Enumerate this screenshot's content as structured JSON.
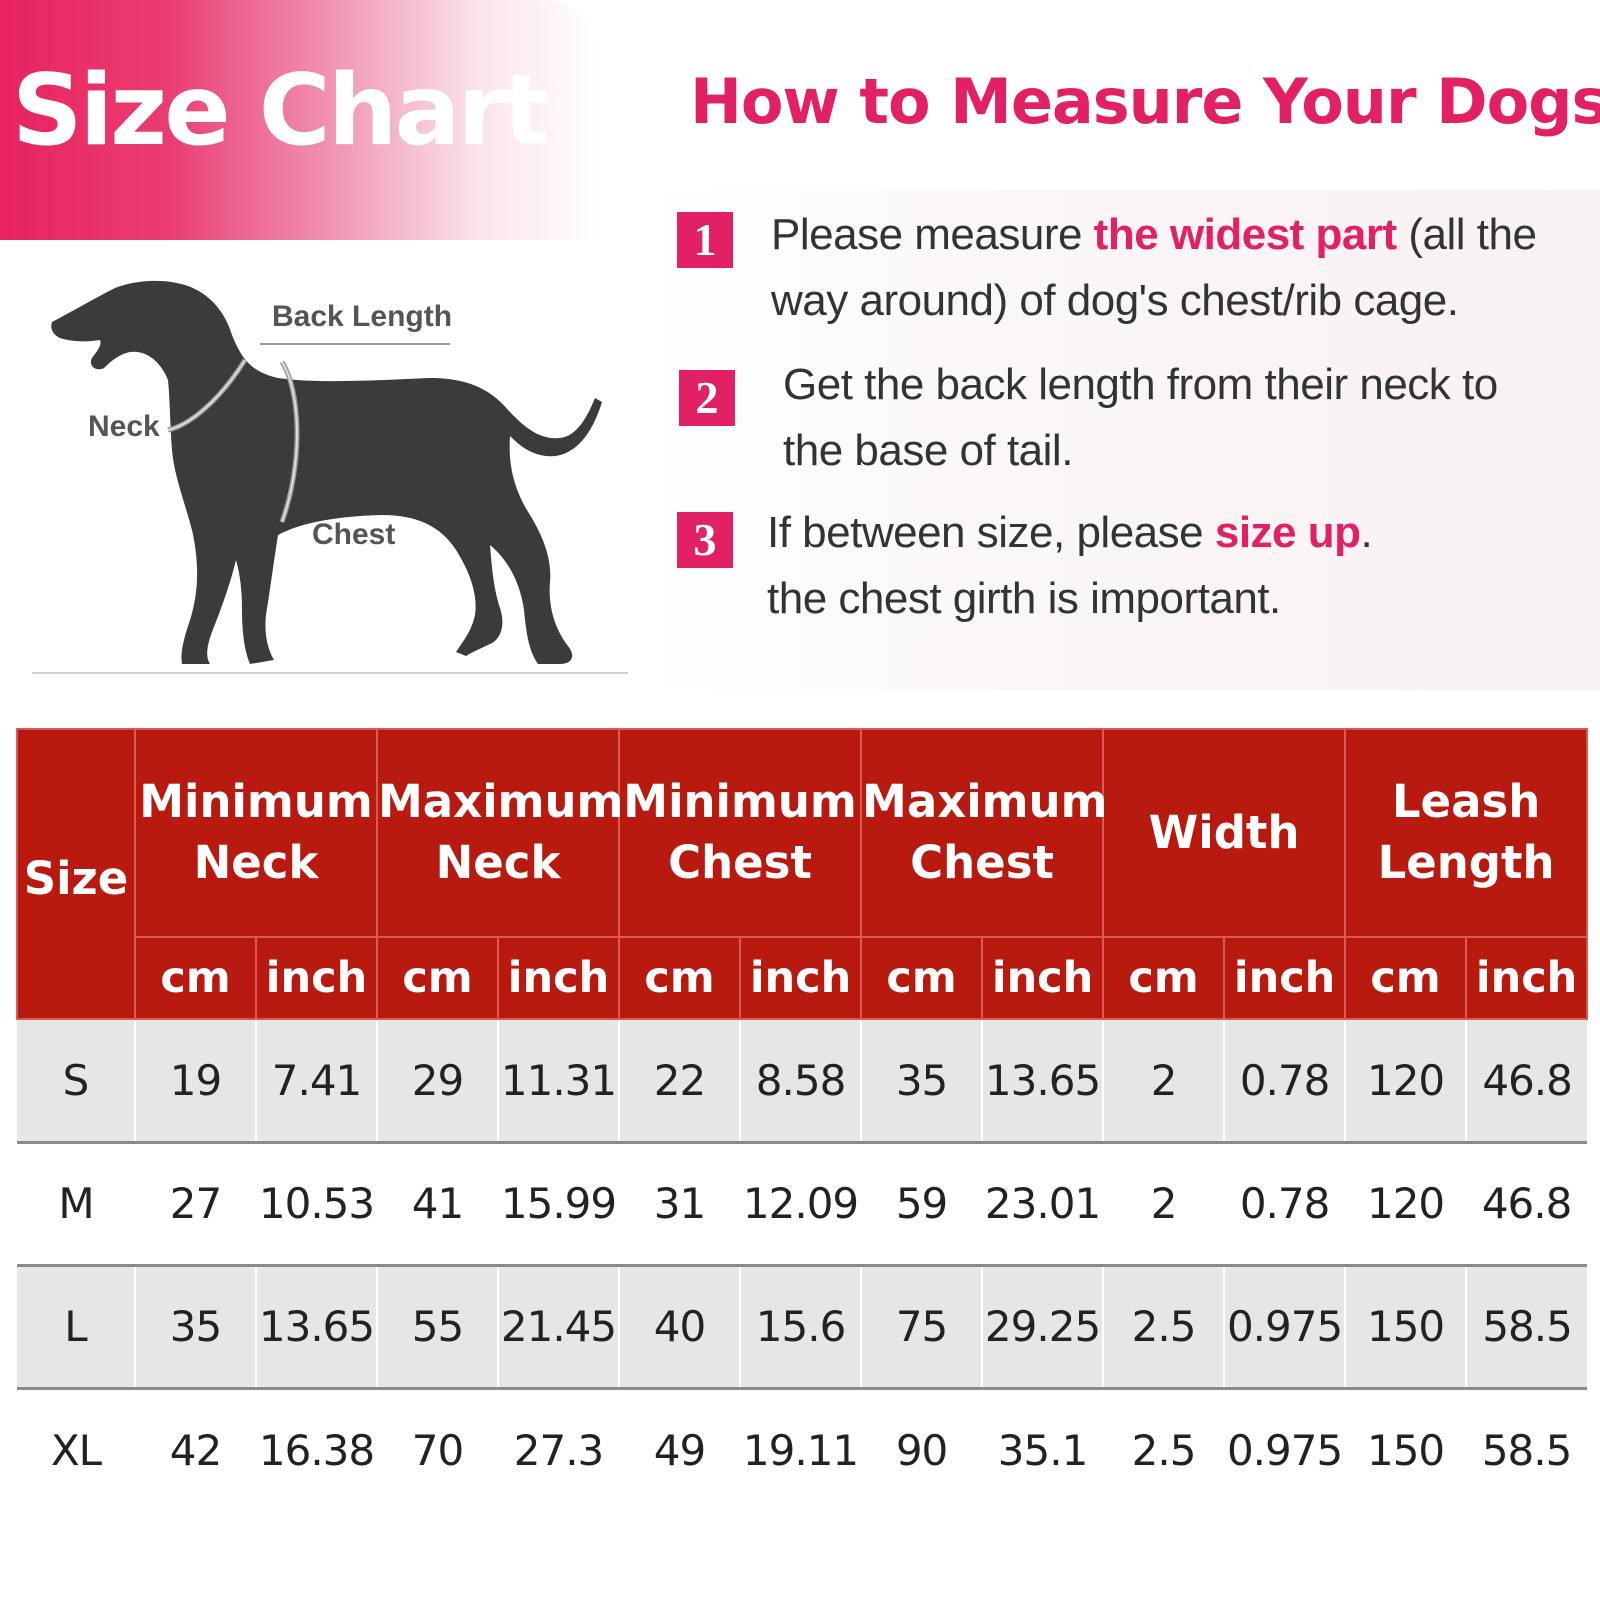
{
  "banner": {
    "title": "Size Chart"
  },
  "howto": {
    "title": "How to Measure Your Dogs?",
    "steps": [
      {
        "number": "1",
        "line1_pre": "Please measure ",
        "line1_highlight": "the widest part",
        "line1_post": " (all the",
        "line2": "way around) of dog's chest/rib cage."
      },
      {
        "number": "2",
        "line1": "Get the back length from their neck to",
        "line2": "the base of tail."
      },
      {
        "number": "3",
        "line1_pre": "If between size, please ",
        "line1_highlight": "size up",
        "line1_post": ".",
        "line2": "the chest girth is  important."
      }
    ]
  },
  "diagram": {
    "labels": {
      "back_length": "Back Length",
      "neck": "Neck",
      "chest": "Chest"
    }
  },
  "table": {
    "size_header": "Size",
    "groups": [
      {
        "line1": "Minimum",
        "line2": "Neck"
      },
      {
        "line1": "Maximum",
        "line2": "Neck"
      },
      {
        "line1": "Minimum",
        "line2": "Chest"
      },
      {
        "line1": "Maximum",
        "line2": "Chest"
      },
      {
        "line1": "Width",
        "line2": ""
      },
      {
        "line1": "Leash",
        "line2": "Length"
      }
    ],
    "units": [
      "cm",
      "inch",
      "cm",
      "inch",
      "cm",
      "inch",
      "cm",
      "inch",
      "cm",
      "inch",
      "cm",
      "inch"
    ],
    "rows": [
      {
        "size": "S",
        "values": [
          "19",
          "7.41",
          "29",
          "11.31",
          "22",
          "8.58",
          "35",
          "13.65",
          "2",
          "0.78",
          "120",
          "46.8"
        ]
      },
      {
        "size": "M",
        "values": [
          "27",
          "10.53",
          "41",
          "15.99",
          "31",
          "12.09",
          "59",
          "23.01",
          "2",
          "0.78",
          "120",
          "46.8"
        ]
      },
      {
        "size": "L",
        "values": [
          "35",
          "13.65",
          "55",
          "21.45",
          "40",
          "15.6",
          "75",
          "29.25",
          "2.5",
          "0.975",
          "150",
          "58.5"
        ]
      },
      {
        "size": "XL",
        "values": [
          "42",
          "16.38",
          "70",
          "27.3",
          "49",
          "19.11",
          "90",
          "35.1",
          "2.5",
          "0.975",
          "150",
          "58.5"
        ]
      }
    ]
  },
  "colors": {
    "brand_pink": "#e22064",
    "table_header_red": "#b81a0f",
    "row_shade": "#e6e6e6",
    "dog_silhouette": "#3b3b3b"
  }
}
